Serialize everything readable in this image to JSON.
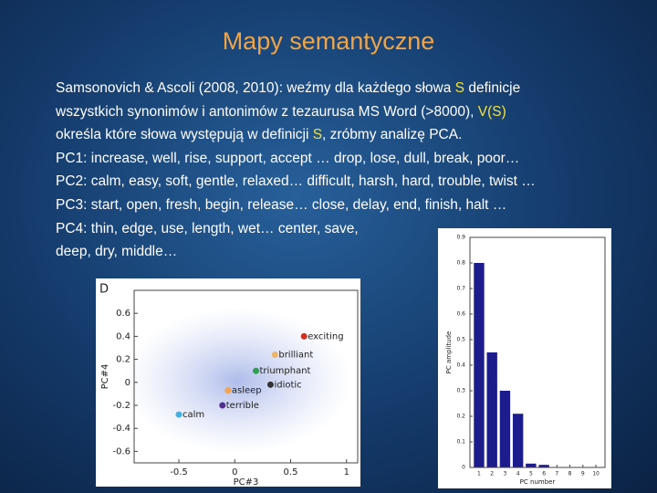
{
  "title": "Mapy semantyczne",
  "body": {
    "lines": [
      [
        {
          "text": "Samsonovich & Ascoli (2008, 2010): weźmy dla każdego słowa "
        },
        {
          "text": "S",
          "color": "#f2e23a"
        },
        {
          "text": " definicje"
        }
      ],
      [
        {
          "text": "wszystkich synonimów i antonimów z tezaurusa MS Word (>8000), "
        },
        {
          "text": "V(S)",
          "color": "#f2e23a"
        }
      ],
      [
        {
          "text": "określa które słowa występują w definicji "
        },
        {
          "text": "S",
          "color": "#f2e23a"
        },
        {
          "text": ", zróbmy analizę PCA."
        }
      ],
      [
        {
          "text": "PC1: increase, well, rise, support, accept … drop, lose, dull, break, poor…"
        }
      ],
      [
        {
          "text": "PC2: calm, easy, soft, gentle, relaxed… difficult, harsh, hard, trouble, twist …"
        }
      ],
      [
        {
          "text": "PC3: start, open, fresh, begin, release… close, delay, end, finish, halt …"
        }
      ],
      [
        {
          "text": "PC4: thin, edge, use, length, wet… center, save,"
        }
      ],
      [
        {
          "text": "deep, dry, middle…"
        }
      ]
    ]
  },
  "chart_data": [
    {
      "type": "scatter",
      "panel_label": "D",
      "x_label": "PC#3",
      "y_label": "PC#4",
      "xlim": [
        -0.9,
        1.1
      ],
      "ylim": [
        -0.7,
        0.8
      ],
      "xticks": [
        -0.5,
        0,
        0.5,
        1
      ],
      "yticks": [
        -0.6,
        -0.4,
        -0.2,
        0,
        0.2,
        0.4,
        0.6
      ],
      "points": [
        {
          "label": "exciting",
          "x": 0.62,
          "y": 0.4,
          "color": "#d2301e"
        },
        {
          "label": "brilliant",
          "x": 0.36,
          "y": 0.24,
          "color": "#eeb468"
        },
        {
          "label": "triumphant",
          "x": 0.19,
          "y": 0.1,
          "color": "#2e9e50"
        },
        {
          "label": "idiotic",
          "x": 0.32,
          "y": -0.02,
          "color": "#333333"
        },
        {
          "label": "asleep",
          "x": -0.06,
          "y": -0.07,
          "color": "#f0a452"
        },
        {
          "label": "terrible",
          "x": -0.11,
          "y": -0.2,
          "color": "#4f2f8f"
        },
        {
          "label": "calm",
          "x": -0.5,
          "y": -0.28,
          "color": "#42b2e2"
        }
      ]
    },
    {
      "type": "bar",
      "x_label": "PC number",
      "y_label": "PC amplitude",
      "x": [
        1,
        2,
        3,
        4,
        5,
        6
      ],
      "values": [
        0.8,
        0.45,
        0.3,
        0.21,
        0.015,
        0.01
      ],
      "color": "#1c1c8c",
      "xlim": [
        0.3,
        10.7
      ],
      "ylim": [
        0,
        0.9
      ],
      "xticks": [
        1,
        2,
        3,
        4,
        5,
        6,
        7,
        8,
        9,
        10
      ],
      "yticks": [
        0,
        0.1,
        0.2,
        0.3,
        0.4,
        0.5,
        0.6,
        0.7,
        0.8,
        0.9
      ]
    }
  ]
}
